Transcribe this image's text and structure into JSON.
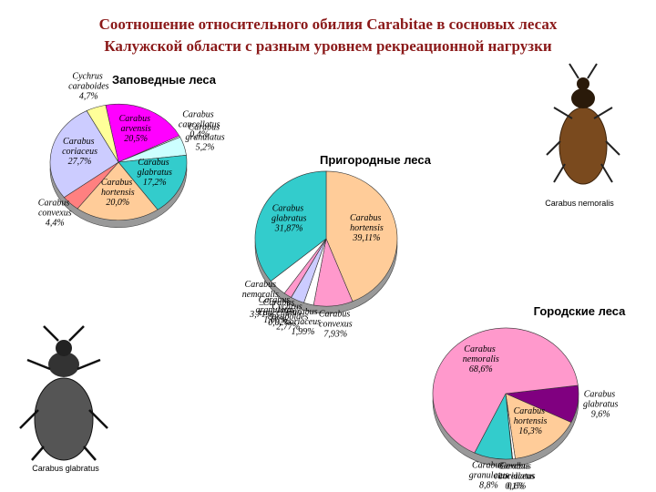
{
  "title_lines": [
    "Соотношение относительного обилия Carabitae в сосновых лесах",
    "Калужской области с разным уровнем рекреационной нагрузки"
  ],
  "captions": [
    "Carabus nemoralis",
    "Carabus glabratus"
  ],
  "chart_data": [
    {
      "type": "pie",
      "title": "Заповедные леса",
      "categories": [
        "Carabus arvensis",
        "Carabus cancellatus",
        "Carabus granulatus",
        "Carabus glabratus",
        "Carabus hortensis",
        "Carabus convexus",
        "Carabus coriaceus",
        "Cychrus caraboides"
      ],
      "values": [
        20.5,
        0.4,
        5.2,
        17.2,
        20.0,
        4.4,
        27.7,
        4.7
      ],
      "value_labels": [
        "20,5%",
        "0,4%",
        "5,2%",
        "17,2%",
        "20,0%",
        "4,4%",
        "27,7%",
        "4,7%"
      ],
      "colors": [
        "#ff00ff",
        "#ffffff",
        "#ccffff",
        "#33cccc",
        "#ffcc99",
        "#ff8080",
        "#ccccff",
        "#ffff99"
      ]
    },
    {
      "type": "pie",
      "title": "Пригородные леса",
      "categories": [
        "Carabus hortensis",
        "Carabus convexus",
        "Carabus coriaceus",
        "Cychrus caraboides",
        "Carabus cancellatus",
        "Carabus granulatus",
        "Carabus nemoralis –",
        "Carabus glabratus"
      ],
      "values": [
        39.11,
        7.93,
        1.99,
        2.77,
        0.02,
        1.6,
        3.71,
        31.87
      ],
      "value_labels": [
        "39,11%",
        "7,93%",
        "1,99%",
        "2,77%",
        "0,02%",
        "1,60%",
        "3,71%",
        "31,87%"
      ],
      "colors": [
        "#ffcc99",
        "#ff99cc",
        "#ffffff",
        "#ccccff",
        "#000080",
        "#ff99cc",
        "#ffffff",
        "#33cccc"
      ]
    },
    {
      "type": "pie",
      "title": "Городские леса",
      "categories": [
        "Carabus glabratus",
        "Carabus hortensis",
        "Carabus coriaceus",
        "Carabus cancellatus",
        "Carabus granulatus",
        "Carabus nemoralis"
      ],
      "values": [
        9.6,
        16.3,
        0.6,
        0.1,
        8.8,
        68.6
      ],
      "value_labels": [
        "9,6%",
        "16,3%",
        "0,6%",
        "0,1%",
        "8,8%",
        "68,6%"
      ],
      "colors": [
        "#800080",
        "#ffcc99",
        "#ffffff",
        "#ffff00",
        "#33cccc",
        "#ff99cc"
      ]
    }
  ]
}
